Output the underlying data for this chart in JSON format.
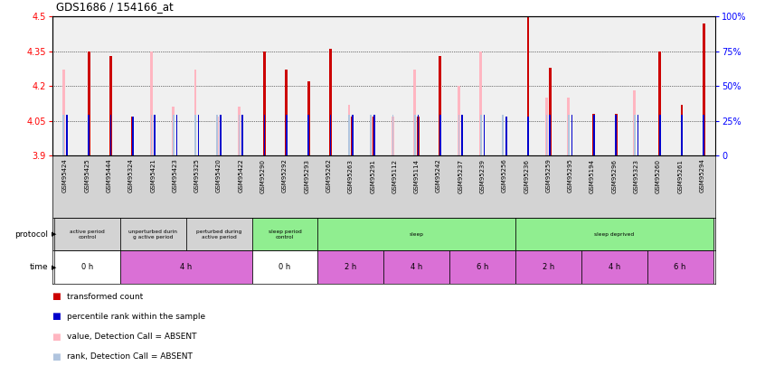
{
  "title": "GDS1686 / 154166_at",
  "samples": [
    "GSM95424",
    "GSM95425",
    "GSM95444",
    "GSM95324",
    "GSM95421",
    "GSM95423",
    "GSM95325",
    "GSM95420",
    "GSM95422",
    "GSM95290",
    "GSM95292",
    "GSM95293",
    "GSM95262",
    "GSM95263",
    "GSM95291",
    "GSM95112",
    "GSM95114",
    "GSM95242",
    "GSM95237",
    "GSM95239",
    "GSM95256",
    "GSM95236",
    "GSM95259",
    "GSM95295",
    "GSM95194",
    "GSM95296",
    "GSM95323",
    "GSM95260",
    "GSM95261",
    "GSM95294"
  ],
  "red_values": [
    3.9,
    4.35,
    4.33,
    4.07,
    3.9,
    3.9,
    3.9,
    3.9,
    3.9,
    4.35,
    4.27,
    4.22,
    4.36,
    4.07,
    4.07,
    3.9,
    4.07,
    4.33,
    3.9,
    3.9,
    3.9,
    4.5,
    4.28,
    3.9,
    4.08,
    4.08,
    3.9,
    4.35,
    4.12,
    4.47
  ],
  "pink_values": [
    4.27,
    3.9,
    3.9,
    3.9,
    4.35,
    4.11,
    4.27,
    4.07,
    4.11,
    3.9,
    3.9,
    3.9,
    3.9,
    4.12,
    4.07,
    4.07,
    4.27,
    3.9,
    4.2,
    4.35,
    4.07,
    3.9,
    4.15,
    4.15,
    3.9,
    3.9,
    4.18,
    3.9,
    3.9,
    3.9
  ],
  "blue_values": [
    4.075,
    4.075,
    4.075,
    4.07,
    4.075,
    4.075,
    4.075,
    4.075,
    4.075,
    4.075,
    4.075,
    4.075,
    4.075,
    4.075,
    4.075,
    3.9,
    4.075,
    4.075,
    4.075,
    4.075,
    4.07,
    4.07,
    4.075,
    4.075,
    4.075,
    4.075,
    4.075,
    4.075,
    4.075,
    4.075
  ],
  "lb_values": [
    4.075,
    3.9,
    3.9,
    3.9,
    4.075,
    4.075,
    4.075,
    4.075,
    4.075,
    3.9,
    3.9,
    3.9,
    3.9,
    4.075,
    4.075,
    4.075,
    4.075,
    3.9,
    4.075,
    4.075,
    4.075,
    3.9,
    4.075,
    4.075,
    3.9,
    3.9,
    4.075,
    3.9,
    3.9,
    3.9
  ],
  "ymin": 3.9,
  "ymax": 4.5,
  "yticks": [
    3.9,
    4.05,
    4.2,
    4.35,
    4.5
  ],
  "right_yticks": [
    0,
    25,
    50,
    75,
    100
  ],
  "protocol_groups": [
    {
      "label": "active period\ncontrol",
      "start": 0,
      "end": 3,
      "color": "#d3d3d3"
    },
    {
      "label": "unperturbed durin\ng active period",
      "start": 3,
      "end": 6,
      "color": "#d3d3d3"
    },
    {
      "label": "perturbed during\nactive period",
      "start": 6,
      "end": 9,
      "color": "#d3d3d3"
    },
    {
      "label": "sleep period\ncontrol",
      "start": 9,
      "end": 12,
      "color": "#90ee90"
    },
    {
      "label": "sleep",
      "start": 12,
      "end": 21,
      "color": "#90ee90"
    },
    {
      "label": "sleep deprived",
      "start": 21,
      "end": 30,
      "color": "#90ee90"
    }
  ],
  "time_groups": [
    {
      "label": "0 h",
      "start": 0,
      "end": 3,
      "color": "#ffffff"
    },
    {
      "label": "4 h",
      "start": 3,
      "end": 9,
      "color": "#da70d6"
    },
    {
      "label": "0 h",
      "start": 9,
      "end": 12,
      "color": "#ffffff"
    },
    {
      "label": "2 h",
      "start": 12,
      "end": 15,
      "color": "#da70d6"
    },
    {
      "label": "4 h",
      "start": 15,
      "end": 18,
      "color": "#da70d6"
    },
    {
      "label": "6 h",
      "start": 18,
      "end": 21,
      "color": "#da70d6"
    },
    {
      "label": "2 h",
      "start": 21,
      "end": 24,
      "color": "#da70d6"
    },
    {
      "label": "4 h",
      "start": 24,
      "end": 27,
      "color": "#da70d6"
    },
    {
      "label": "6 h",
      "start": 27,
      "end": 30,
      "color": "#da70d6"
    }
  ],
  "color_red": "#cc0000",
  "color_pink": "#ffb6c1",
  "color_blue": "#0000cc",
  "color_lightblue": "#b0c4de",
  "legend_items": [
    {
      "color": "#cc0000",
      "label": "transformed count"
    },
    {
      "color": "#0000cc",
      "label": "percentile rank within the sample"
    },
    {
      "color": "#ffb6c1",
      "label": "value, Detection Call = ABSENT"
    },
    {
      "color": "#b0c4de",
      "label": "rank, Detection Call = ABSENT"
    }
  ]
}
